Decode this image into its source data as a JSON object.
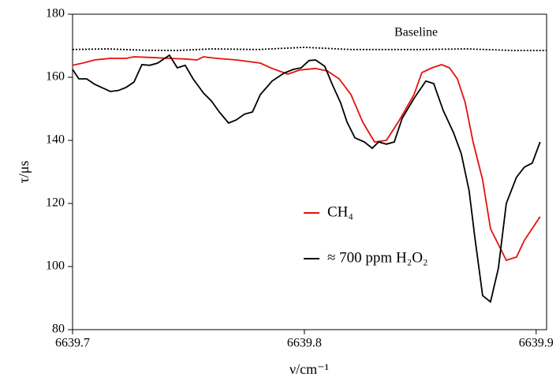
{
  "chart_data": {
    "type": "line",
    "xlabel": "ν/cm⁻¹",
    "ylabel": "τ/μs",
    "xlim": [
      6639.7,
      6639.9045
    ],
    "xticks": [
      6639.7,
      6639.8,
      6639.9
    ],
    "ylim": [
      80,
      180
    ],
    "yticks": [
      80,
      100,
      120,
      140,
      160,
      180
    ],
    "series": [
      {
        "name": "CH₄",
        "color": "#e3120b",
        "style": "solid",
        "legend": true,
        "x": [
          6639.7,
          6639.7044,
          6639.7095,
          6639.7163,
          6639.7231,
          6639.7265,
          6639.7333,
          6639.7418,
          6639.7486,
          6639.7537,
          6639.7565,
          6639.7622,
          6639.7707,
          6639.781,
          6639.7861,
          6639.7929,
          6639.798,
          6639.8048,
          6639.8099,
          6639.815,
          6639.8201,
          6639.8252,
          6639.8303,
          6639.8354,
          6639.8405,
          6639.8473,
          6639.8507,
          6639.8551,
          6639.8592,
          6639.8626,
          6639.866,
          6639.8694,
          6639.8728,
          6639.8769,
          6639.8803,
          6639.8837,
          6639.8871,
          6639.8915,
          6639.8949,
          6639.9017
        ],
        "values": [
          163.8,
          164.5,
          165.5,
          166,
          166,
          166.5,
          166.3,
          166,
          165.8,
          165.5,
          166.5,
          166,
          165.5,
          164.5,
          162.8,
          161,
          162.3,
          162.8,
          162,
          159.5,
          154.5,
          145.8,
          139.5,
          140,
          145.8,
          154.5,
          161.5,
          163,
          164,
          163,
          159.5,
          152,
          139.5,
          127.5,
          112,
          107,
          102,
          103,
          108.3,
          115.8
        ]
      },
      {
        "name": "≈ 700 ppm H₂O₂",
        "color": "#000000",
        "style": "solid",
        "legend": true,
        "x": [
          6639.7,
          6639.7027,
          6639.7061,
          6639.7095,
          6639.7163,
          6639.7197,
          6639.7231,
          6639.7265,
          6639.7299,
          6639.7333,
          6639.7367,
          6639.7418,
          6639.7452,
          6639.7486,
          6639.752,
          6639.7565,
          6639.7599,
          6639.7633,
          6639.7673,
          6639.7707,
          6639.7741,
          6639.7776,
          6639.781,
          6639.7861,
          6639.7912,
          6639.7952,
          6639.7986,
          6639.802,
          6639.8048,
          6639.8088,
          6639.8122,
          6639.8156,
          6639.8184,
          6639.8218,
          6639.8259,
          6639.8293,
          6639.832,
          6639.8354,
          6639.8388,
          6639.8422,
          6639.8473,
          6639.8524,
          6639.8558,
          6639.8599,
          6639.8643,
          6639.8677,
          6639.8711,
          6639.8735,
          6639.8769,
          6639.8803,
          6639.8837,
          6639.8871,
          6639.8915,
          6639.8949,
          6639.8983,
          6639.9017
        ],
        "values": [
          162.5,
          159.5,
          159.5,
          157.8,
          155.5,
          155.8,
          156.8,
          158.5,
          164,
          163.8,
          164.5,
          167,
          163,
          163.8,
          159.5,
          155,
          152.5,
          149,
          145.5,
          146.5,
          148.3,
          149,
          154.5,
          158.8,
          161.3,
          162.5,
          163,
          165.3,
          165.5,
          163.5,
          157.5,
          152,
          145.8,
          140.8,
          139.5,
          137.5,
          139.5,
          138.8,
          139.5,
          147,
          153.3,
          158.8,
          158,
          149.5,
          142.5,
          135.8,
          124,
          109.5,
          90.8,
          88.8,
          99.5,
          120,
          128.3,
          131.5,
          132.8,
          139.5
        ]
      },
      {
        "name": "Baseline",
        "color": "#000000",
        "style": "dotted",
        "legend": false,
        "x": [
          6639.7,
          6639.715,
          6639.73,
          6639.745,
          6639.76,
          6639.78,
          6639.8,
          6639.82,
          6639.85,
          6639.87,
          6639.89,
          6639.9045
        ],
        "values": [
          168.8,
          169,
          168.6,
          168.5,
          169,
          168.8,
          169.5,
          168.8,
          168.8,
          169,
          168.5,
          168.5
        ]
      }
    ]
  }
}
